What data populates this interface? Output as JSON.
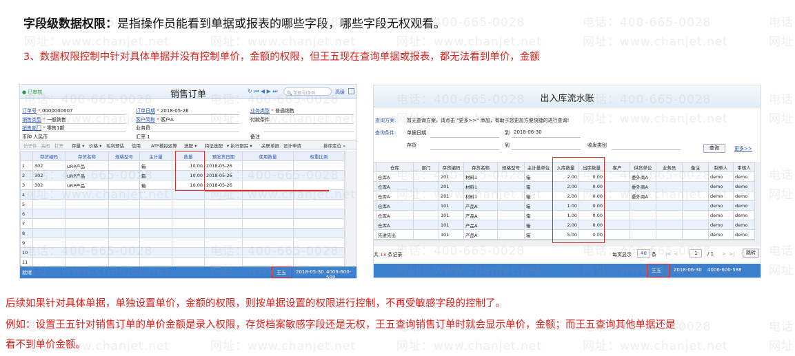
{
  "heading": {
    "bold": "字段级数据权限：",
    "text": "是指操作员能看到单据或报表的哪些字段，哪些字段无权观看。"
  },
  "note3": "3、数据权限控制中针对具体单据并没有控制单价，金额的权限，但王五现在查询单据或报表，都无法看到单价，金额",
  "watermark": {
    "phone": "电话：400-665-0028",
    "site": "网址：www.chanjet.net"
  },
  "left": {
    "status_badge": "已审核",
    "title": "销售订单",
    "search_placeholder": "单据号/条码",
    "advanced": "高级",
    "fields": [
      {
        "label": "订单号",
        "req": true,
        "value": "0000000007"
      },
      {
        "label": "订单日期",
        "req": true,
        "value": "2018-05-26"
      },
      {
        "label": "业务类型",
        "req": true,
        "value": "普通销售"
      },
      {
        "label": "销售类型",
        "req": true,
        "value": "一般销售"
      },
      {
        "label": "客户简称",
        "req": true,
        "value": "客户A"
      },
      {
        "label": "付款条件",
        "req": false,
        "value": ""
      },
      {
        "label": "销售部门",
        "req": true,
        "value": "零售1部"
      },
      {
        "label": "业务员",
        "req": false,
        "value": ""
      },
      {
        "label": "",
        "req": false,
        "value": ""
      },
      {
        "label": "币种",
        "req": false,
        "value": "人民币"
      },
      {
        "label": "汇率",
        "req": false,
        "value": "1"
      },
      {
        "label": "备注",
        "req": false,
        "value": ""
      }
    ],
    "toolbar": [
      "仿子件",
      "关闭",
      "打开",
      "存量 ▾",
      "价格 ▾",
      "毛利预估",
      "信用",
      "ATP模拟运算",
      "选配 ▾",
      "特征选配",
      "▾ 执行跟踪 ▾",
      "关联单据",
      "设计申请",
      "排序定位 »"
    ],
    "columns": [
      "",
      "存货编码",
      "存货名称",
      "规格型号",
      "主计量",
      "数量",
      "预发货日期",
      "使用数量",
      "权重比例"
    ],
    "rows": [
      [
        "1",
        "302",
        "URP产品",
        "",
        "箱",
        "10.00",
        "2018-05-26",
        "",
        ""
      ],
      [
        "2",
        "302",
        "URP产品",
        "",
        "箱",
        "10.00",
        "2018-05-26",
        "",
        ""
      ],
      [
        "3",
        "302",
        "URP产品",
        "",
        "箱",
        "10.00",
        "2018-05-26",
        "",
        ""
      ],
      [
        "4",
        "",
        "",
        "",
        "",
        "",
        "",
        "",
        ""
      ],
      [
        "5",
        "",
        "",
        "",
        "",
        "",
        "",
        "",
        ""
      ],
      [
        "6",
        "",
        "",
        "",
        "",
        "",
        "",
        "",
        ""
      ],
      [
        "7",
        "",
        "",
        "",
        "",
        "",
        "",
        "",
        ""
      ],
      [
        "8",
        "",
        "",
        "",
        "",
        "",
        "",
        "",
        ""
      ],
      [
        "9",
        "",
        "",
        "",
        "",
        "",
        "",
        "",
        ""
      ],
      [
        "10",
        "",
        "",
        "",
        "",
        "",
        "",
        "",
        ""
      ],
      [
        "11",
        "",
        "",
        "",
        "",
        "",
        "",
        "",
        ""
      ]
    ],
    "statusbar": {
      "ready": "就绪",
      "user": "王五",
      "date": "2018-05-30",
      "phone": "4006-600-588"
    }
  },
  "right": {
    "title": "出入库流水账",
    "scheme_label": "查询方案:",
    "scheme_text": "暂无查询方案，请点击 \"更多>>\" 添加，有助于您更加方便快捷的进行查询!",
    "cond_label": "查询条件:",
    "date_label": "单据日期",
    "to": "到",
    "date_to": "2018-06-30",
    "inv_label": "存货",
    "type_label": "收发类别",
    "query_btn": "查询",
    "more_link": "更多>>",
    "columns": [
      "",
      "仓库",
      "部门",
      "存货编码",
      "存货名称",
      "规格型号",
      "主计量单位",
      "入库数量",
      "出库数量",
      "客户",
      "供货单位",
      "业务员",
      "备注",
      "制单人",
      "审核人"
    ],
    "rows": [
      [
        "",
        "仓库A",
        "",
        "201",
        "材料1",
        "",
        "箱",
        "2.00",
        "0.00",
        "",
        "委外商A",
        "",
        "",
        "demo",
        "demo"
      ],
      [
        "",
        "仓库A",
        "",
        "201",
        "材料1",
        "",
        "箱",
        "2.00",
        "0.00",
        "",
        "委外商A",
        "",
        "",
        "demo",
        "demo"
      ],
      [
        "",
        "仓库A",
        "",
        "201",
        "材料1",
        "",
        "箱",
        "2.00",
        "0.00",
        "",
        "委外商A",
        "",
        "",
        "demo",
        "demo"
      ],
      [
        "",
        "仓库A",
        "",
        "101",
        "产品A",
        "",
        "箱",
        "1.00",
        "0.00",
        "",
        "",
        "",
        "",
        "demo",
        "demo"
      ],
      [
        "",
        "仓库A",
        "",
        "101",
        "产品A",
        "",
        "箱",
        "1.00",
        "0.00",
        "",
        "",
        "",
        "",
        "demo",
        "demo"
      ],
      [
        "",
        "仓库A",
        "",
        "101",
        "产品A",
        "",
        "箱",
        "2.00",
        "0.00",
        "",
        "",
        "",
        "",
        "demo",
        "demo"
      ],
      [
        "",
        "先进先出",
        "",
        "101",
        "产品A",
        "",
        "箱",
        "5.00",
        "0.00",
        "",
        "",
        "",
        "",
        "demo",
        "demo"
      ]
    ],
    "footer": {
      "total_pre": "共",
      "total": "13",
      "total_post": "条记录",
      "per_page_label": "每页显示",
      "per_page": "40",
      "per_page_unit": "条",
      "page": "1",
      "pages": "/ 1",
      "jump": "跳转"
    },
    "statusbar": {
      "user": "王五",
      "date": "2018-06-30",
      "phone": "4006-600-588"
    }
  },
  "para1": "后续如果针对具体单据，单独设置单价，金额的权限，则按单据设置的权限进行控制，不再受敏感字段的控制了。",
  "para2a": "例如：设置王五针对销售订单的单价金额是录入权限，存货档案敏感字段还是无权，王五查询销售订单时就会显示单价，金额；而王五查询其他单据还是",
  "para2b": "看不到单价金额。",
  "colors": {
    "red": "#e0201b",
    "statusbar": "#3d7fcf",
    "link": "#2a56b0"
  }
}
